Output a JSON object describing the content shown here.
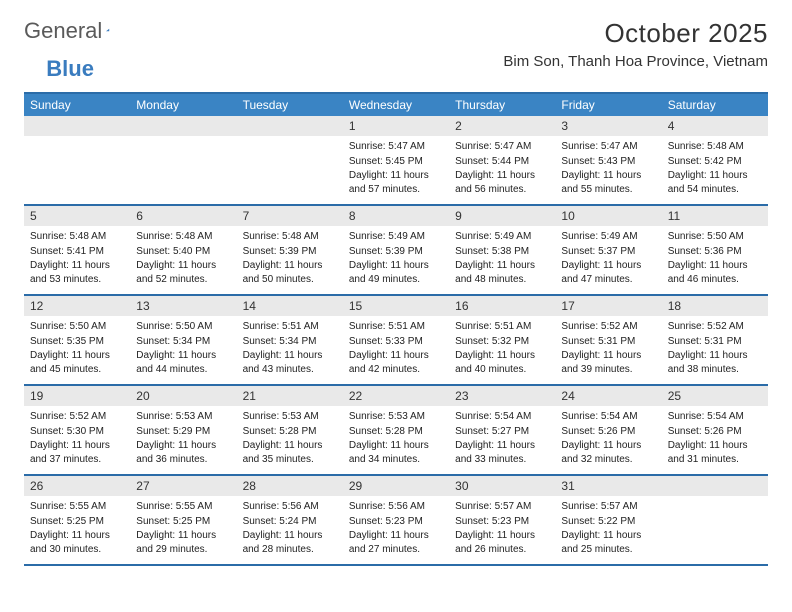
{
  "brand": {
    "part1": "General",
    "part2": "Blue"
  },
  "title": "October 2025",
  "location": "Bim Son, Thanh Hoa Province, Vietnam",
  "colors": {
    "header_bg": "#3a84c4",
    "rule": "#2b6ca8",
    "daynum_bg": "#e9e9e9",
    "text": "#333333",
    "logo_gray": "#5a5a5a",
    "logo_blue": "#3a7cbf"
  },
  "fonts": {
    "title_size_pt": 20,
    "location_size_pt": 11,
    "dow_size_pt": 9,
    "daynum_size_pt": 9,
    "body_size_pt": 7.5
  },
  "dow": [
    "Sunday",
    "Monday",
    "Tuesday",
    "Wednesday",
    "Thursday",
    "Friday",
    "Saturday"
  ],
  "first_weekday_index": 3,
  "days": [
    {
      "n": 1,
      "sunrise": "5:47 AM",
      "sunset": "5:45 PM",
      "daylight": "11 hours and 57 minutes."
    },
    {
      "n": 2,
      "sunrise": "5:47 AM",
      "sunset": "5:44 PM",
      "daylight": "11 hours and 56 minutes."
    },
    {
      "n": 3,
      "sunrise": "5:47 AM",
      "sunset": "5:43 PM",
      "daylight": "11 hours and 55 minutes."
    },
    {
      "n": 4,
      "sunrise": "5:48 AM",
      "sunset": "5:42 PM",
      "daylight": "11 hours and 54 minutes."
    },
    {
      "n": 5,
      "sunrise": "5:48 AM",
      "sunset": "5:41 PM",
      "daylight": "11 hours and 53 minutes."
    },
    {
      "n": 6,
      "sunrise": "5:48 AM",
      "sunset": "5:40 PM",
      "daylight": "11 hours and 52 minutes."
    },
    {
      "n": 7,
      "sunrise": "5:48 AM",
      "sunset": "5:39 PM",
      "daylight": "11 hours and 50 minutes."
    },
    {
      "n": 8,
      "sunrise": "5:49 AM",
      "sunset": "5:39 PM",
      "daylight": "11 hours and 49 minutes."
    },
    {
      "n": 9,
      "sunrise": "5:49 AM",
      "sunset": "5:38 PM",
      "daylight": "11 hours and 48 minutes."
    },
    {
      "n": 10,
      "sunrise": "5:49 AM",
      "sunset": "5:37 PM",
      "daylight": "11 hours and 47 minutes."
    },
    {
      "n": 11,
      "sunrise": "5:50 AM",
      "sunset": "5:36 PM",
      "daylight": "11 hours and 46 minutes."
    },
    {
      "n": 12,
      "sunrise": "5:50 AM",
      "sunset": "5:35 PM",
      "daylight": "11 hours and 45 minutes."
    },
    {
      "n": 13,
      "sunrise": "5:50 AM",
      "sunset": "5:34 PM",
      "daylight": "11 hours and 44 minutes."
    },
    {
      "n": 14,
      "sunrise": "5:51 AM",
      "sunset": "5:34 PM",
      "daylight": "11 hours and 43 minutes."
    },
    {
      "n": 15,
      "sunrise": "5:51 AM",
      "sunset": "5:33 PM",
      "daylight": "11 hours and 42 minutes."
    },
    {
      "n": 16,
      "sunrise": "5:51 AM",
      "sunset": "5:32 PM",
      "daylight": "11 hours and 40 minutes."
    },
    {
      "n": 17,
      "sunrise": "5:52 AM",
      "sunset": "5:31 PM",
      "daylight": "11 hours and 39 minutes."
    },
    {
      "n": 18,
      "sunrise": "5:52 AM",
      "sunset": "5:31 PM",
      "daylight": "11 hours and 38 minutes."
    },
    {
      "n": 19,
      "sunrise": "5:52 AM",
      "sunset": "5:30 PM",
      "daylight": "11 hours and 37 minutes."
    },
    {
      "n": 20,
      "sunrise": "5:53 AM",
      "sunset": "5:29 PM",
      "daylight": "11 hours and 36 minutes."
    },
    {
      "n": 21,
      "sunrise": "5:53 AM",
      "sunset": "5:28 PM",
      "daylight": "11 hours and 35 minutes."
    },
    {
      "n": 22,
      "sunrise": "5:53 AM",
      "sunset": "5:28 PM",
      "daylight": "11 hours and 34 minutes."
    },
    {
      "n": 23,
      "sunrise": "5:54 AM",
      "sunset": "5:27 PM",
      "daylight": "11 hours and 33 minutes."
    },
    {
      "n": 24,
      "sunrise": "5:54 AM",
      "sunset": "5:26 PM",
      "daylight": "11 hours and 32 minutes."
    },
    {
      "n": 25,
      "sunrise": "5:54 AM",
      "sunset": "5:26 PM",
      "daylight": "11 hours and 31 minutes."
    },
    {
      "n": 26,
      "sunrise": "5:55 AM",
      "sunset": "5:25 PM",
      "daylight": "11 hours and 30 minutes."
    },
    {
      "n": 27,
      "sunrise": "5:55 AM",
      "sunset": "5:25 PM",
      "daylight": "11 hours and 29 minutes."
    },
    {
      "n": 28,
      "sunrise": "5:56 AM",
      "sunset": "5:24 PM",
      "daylight": "11 hours and 28 minutes."
    },
    {
      "n": 29,
      "sunrise": "5:56 AM",
      "sunset": "5:23 PM",
      "daylight": "11 hours and 27 minutes."
    },
    {
      "n": 30,
      "sunrise": "5:57 AM",
      "sunset": "5:23 PM",
      "daylight": "11 hours and 26 minutes."
    },
    {
      "n": 31,
      "sunrise": "5:57 AM",
      "sunset": "5:22 PM",
      "daylight": "11 hours and 25 minutes."
    }
  ],
  "labels": {
    "sunrise": "Sunrise:",
    "sunset": "Sunset:",
    "daylight": "Daylight:"
  }
}
